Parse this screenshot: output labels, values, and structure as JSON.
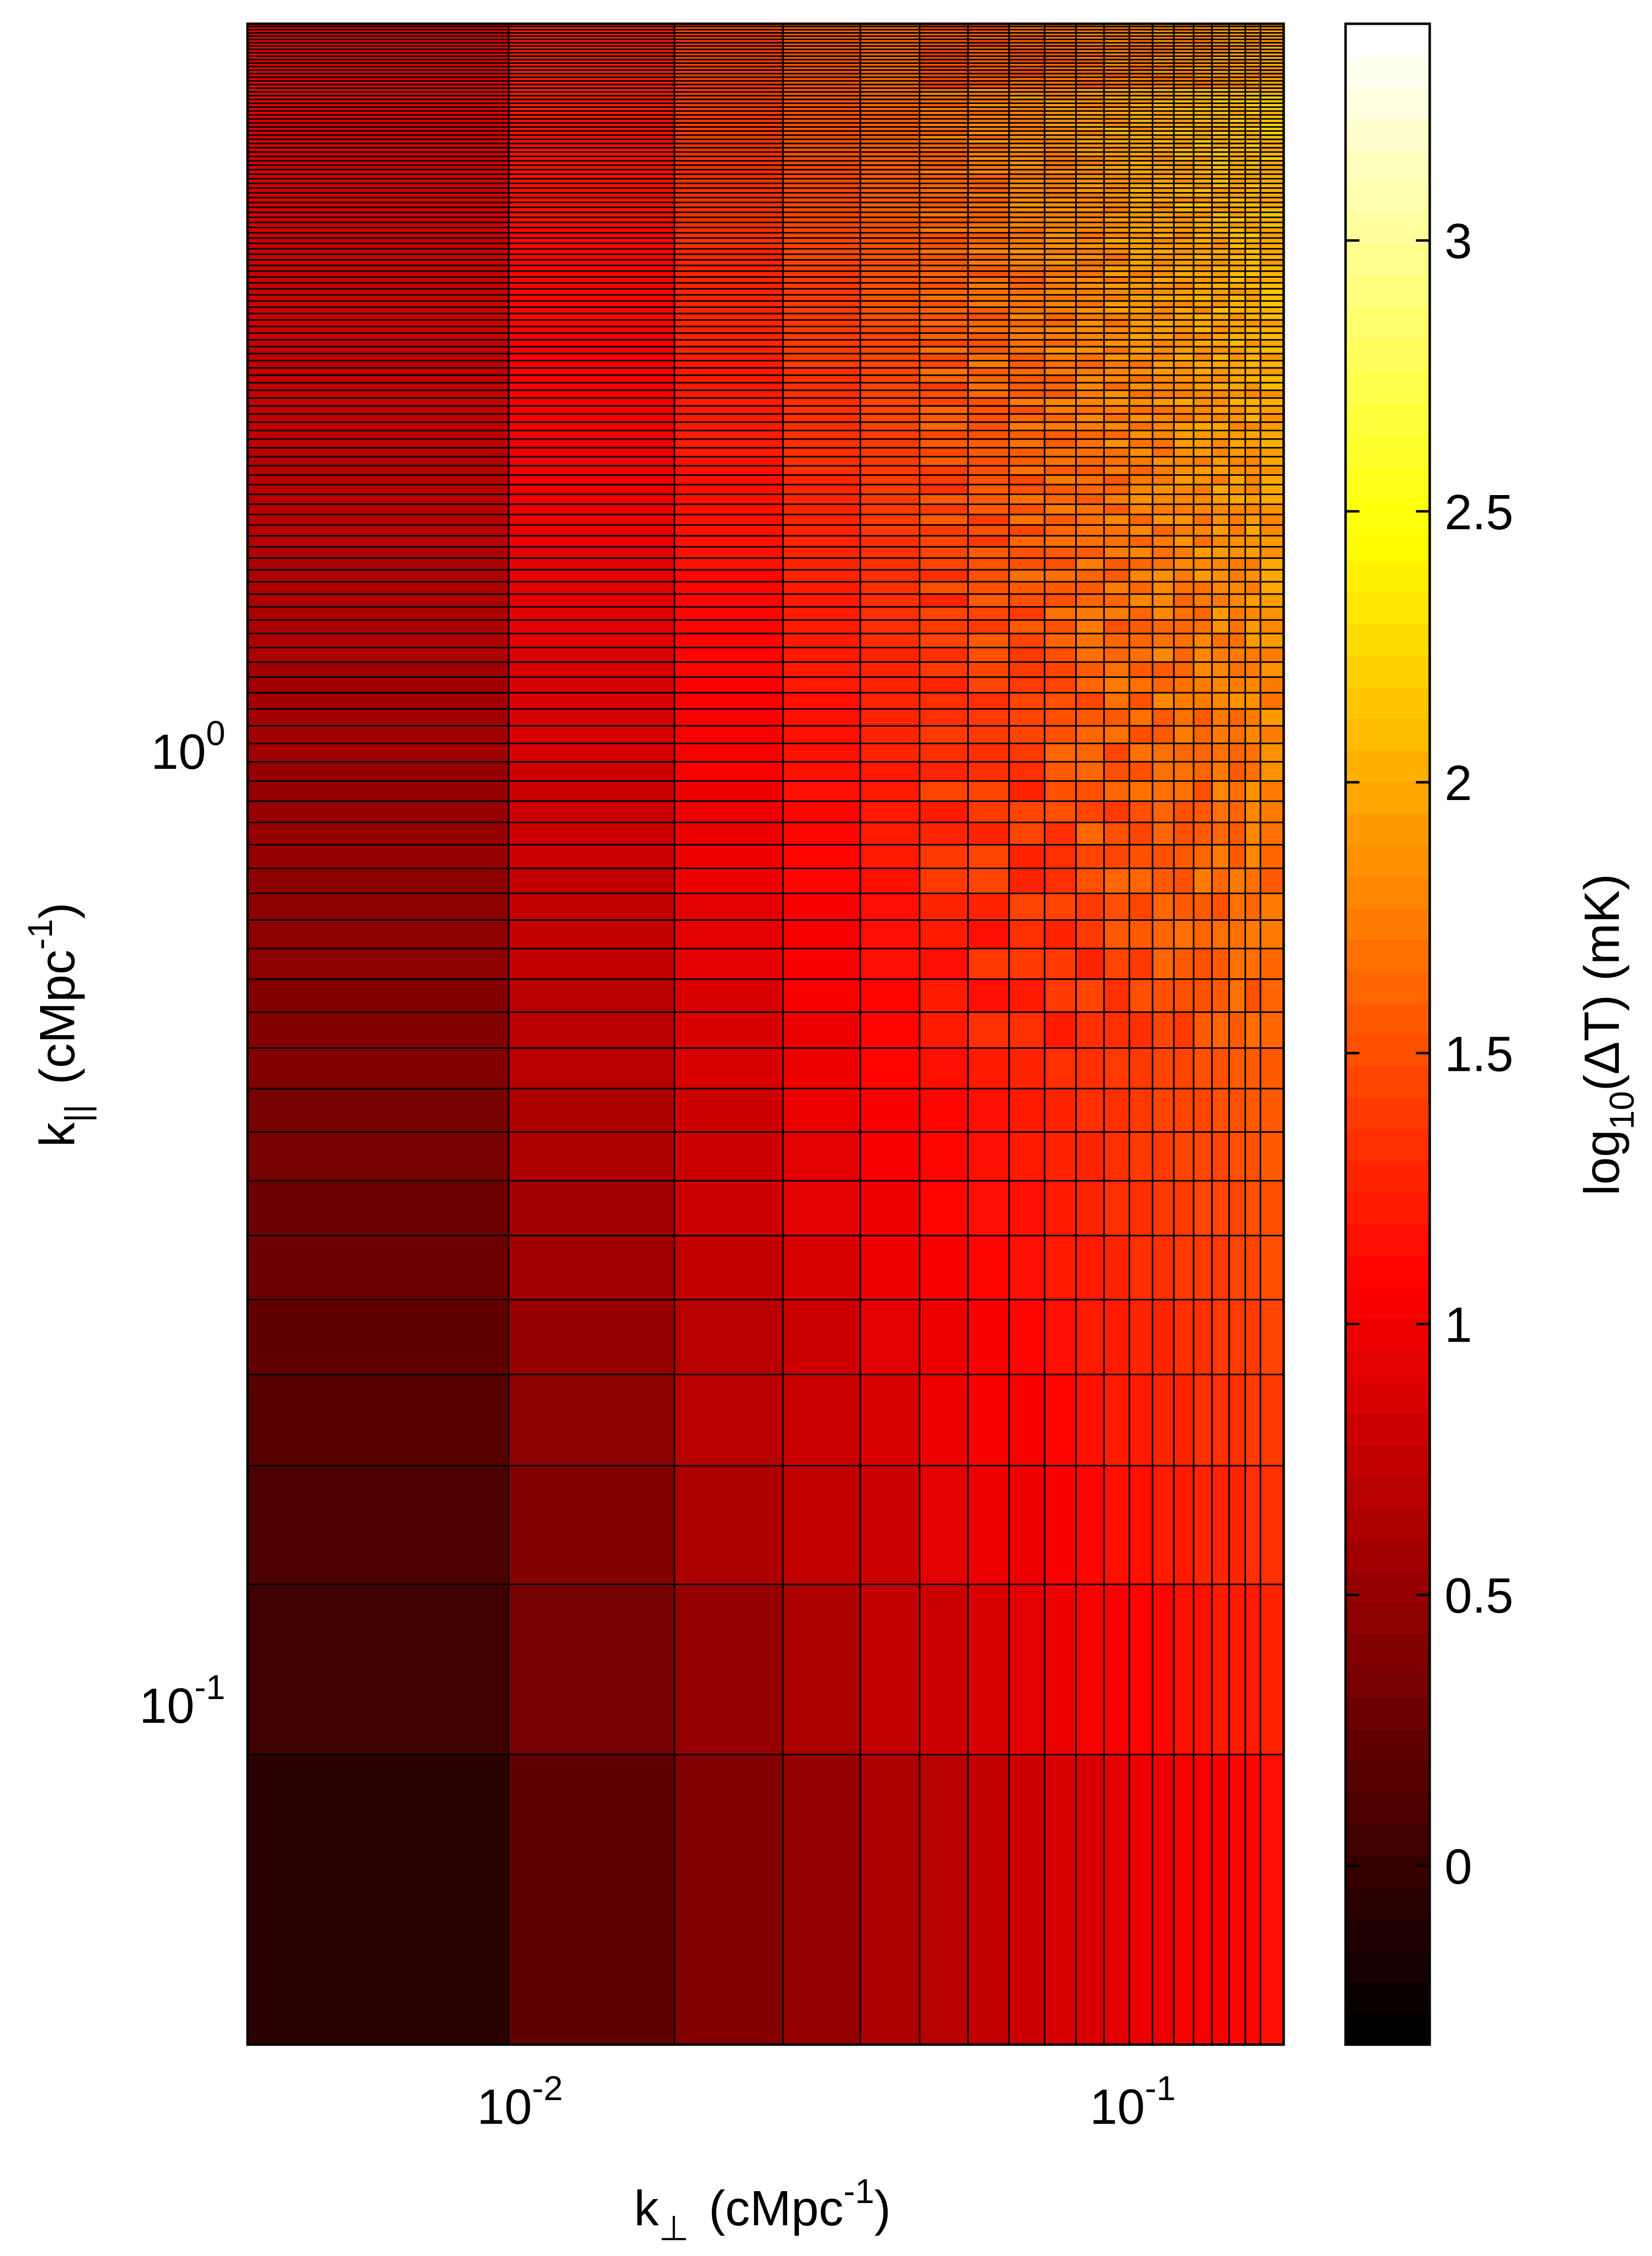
{
  "chart_data": {
    "type": "heatmap",
    "title": "",
    "xscale": "log",
    "yscale": "log",
    "xlabel": {
      "base": "k",
      "sub": "⊥",
      "unit_open": "(cMpc",
      "unit_sup": "-1",
      "unit_close": ")"
    },
    "ylabel": {
      "base": "k",
      "sub": "||",
      "unit_open": "(cMpc",
      "unit_sup": "-1",
      "unit_close": ")"
    },
    "x_ticks": [
      {
        "value": 0.01,
        "base": "10",
        "exp": "-2"
      },
      {
        "value": 0.1,
        "base": "10",
        "exp": "-1"
      }
    ],
    "y_ticks": [
      {
        "value": 1,
        "base": "10",
        "exp": "0"
      },
      {
        "value": 0.1,
        "base": "10",
        "exp": "-1"
      }
    ],
    "xlim": [
      0.00373,
      0.183
    ],
    "ylim": [
      0.0436,
      5.72
    ],
    "k_perp_edges_first": [
      0.00373,
      0.00995,
      0.01855,
      0.0279,
      0.0373,
      0.0466,
      0.0559
    ],
    "k_perp_bin_width": 0.00932,
    "k_perp_bins": 19,
    "k_par_edges_first": [
      0.0436,
      0.0878,
      0.1324,
      0.1763,
      0.2197,
      0.2632,
      0.3072,
      0.3506,
      0.3944,
      0.438,
      0.483
    ],
    "k_par_bin_width": 0.0437,
    "k_par_bins": 130,
    "value_model": "log10(dT) approx -0.33 + 0.83*log10(k_perp/0.00373) + 0.52*log10(k_par/0.0436), clipped to colorbar range",
    "z_label": {
      "base": "log",
      "sub": "10",
      "rest": "(ΔT)  (mK)"
    },
    "colorbar": {
      "colormap": "hot",
      "range": [
        -0.33,
        3.4
      ],
      "ticks": [
        {
          "value": 0,
          "label": "0"
        },
        {
          "value": 0.5,
          "label": "0.5"
        },
        {
          "value": 1,
          "label": "1"
        },
        {
          "value": 1.5,
          "label": "1.5"
        },
        {
          "value": 2,
          "label": "2"
        },
        {
          "value": 2.5,
          "label": "2.5"
        },
        {
          "value": 3,
          "label": "3"
        }
      ],
      "steps": 64
    },
    "grid": false,
    "legend": "none"
  }
}
